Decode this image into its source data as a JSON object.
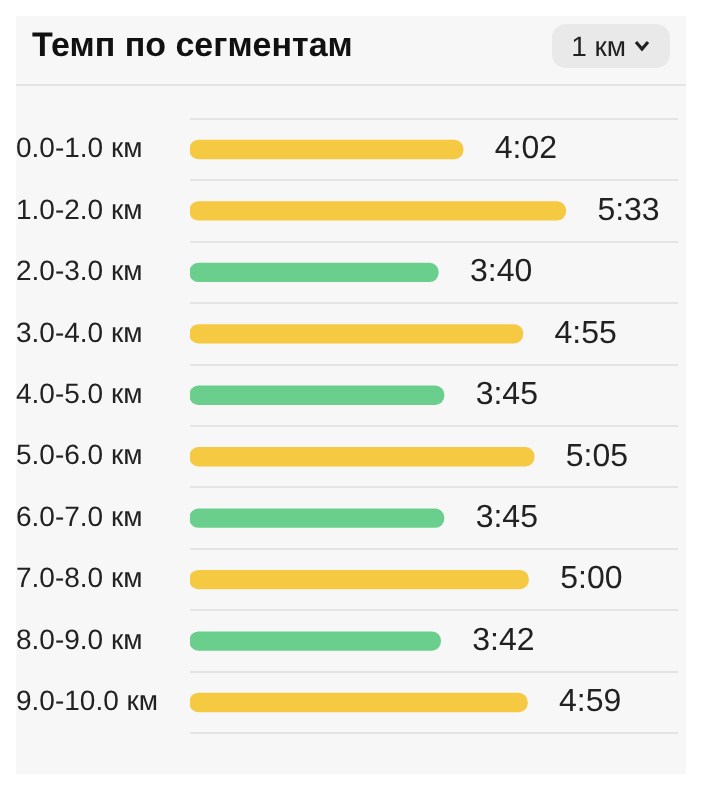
{
  "chart_data": {
    "type": "bar",
    "orientation": "horizontal",
    "title": "Темп по сегментам",
    "annotations": [
      "1 км"
    ],
    "categories": [
      "0.0-1.0 км",
      "1.0-2.0 км",
      "2.0-3.0 км",
      "3.0-4.0 км",
      "4.0-5.0 км",
      "5.0-6.0 км",
      "6.0-7.0 км",
      "7.0-8.0 км",
      "8.0-9.0 км",
      "9.0-10.0 км"
    ],
    "values": [
      242,
      333,
      220,
      295,
      225,
      305,
      225,
      300,
      222,
      299
    ],
    "value_labels": [
      "4:02",
      "5:33",
      "3:40",
      "4:55",
      "3:45",
      "5:05",
      "3:45",
      "5:00",
      "3:42",
      "4:59"
    ],
    "colors": [
      "#f6c943",
      "#f6c943",
      "#6acf8c",
      "#f6c943",
      "#6acf8c",
      "#f6c943",
      "#6acf8c",
      "#f6c943",
      "#6acf8c",
      "#f6c943"
    ],
    "grid": "y",
    "tick_labels": "y",
    "legend": false
  }
}
